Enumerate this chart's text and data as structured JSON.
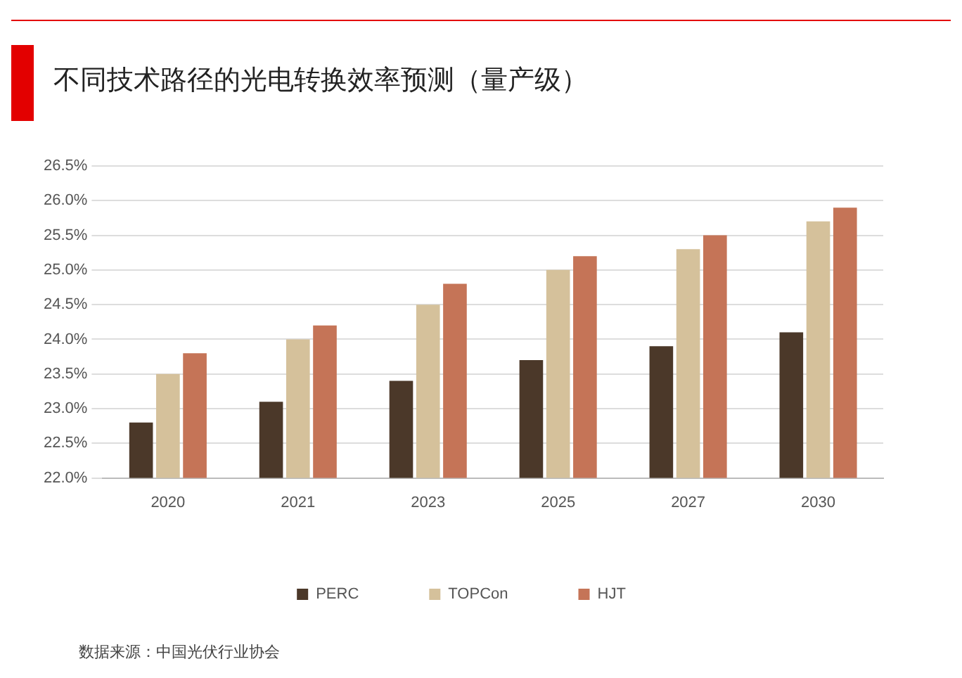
{
  "chart_data": {
    "type": "bar",
    "title": "不同技术路径的光电转换效率预测（量产级）",
    "categories": [
      "2020",
      "2021",
      "2023",
      "2025",
      "2027",
      "2030"
    ],
    "series": [
      {
        "name": "PERC",
        "color": "#4b3829",
        "values": [
          22.8,
          23.1,
          23.4,
          23.7,
          23.9,
          24.1
        ]
      },
      {
        "name": "TOPCon",
        "color": "#d5c19b",
        "values": [
          23.5,
          24.0,
          24.5,
          25.0,
          25.3,
          25.7
        ]
      },
      {
        "name": "HJT",
        "color": "#c57457",
        "values": [
          23.8,
          24.2,
          24.8,
          25.2,
          25.5,
          25.9
        ]
      }
    ],
    "ylim": [
      22,
      26.5
    ],
    "yticks": [
      {
        "value": 22,
        "label": "22.0%"
      },
      {
        "value": 22.5,
        "label": "22.5%"
      },
      {
        "value": 23,
        "label": "23.0%"
      },
      {
        "value": 23.5,
        "label": "23.5%"
      },
      {
        "value": 24,
        "label": "24.0%"
      },
      {
        "value": 24.5,
        "label": "24.5%"
      },
      {
        "value": 25,
        "label": "25.0%"
      },
      {
        "value": 25.5,
        "label": "25.5%"
      },
      {
        "value": 26,
        "label": "26.0%"
      },
      {
        "value": 26.5,
        "label": "26.5%"
      }
    ],
    "grid": "y",
    "legend": "bottom",
    "annotations": [
      "数据来源：中国光伏行业协会"
    ]
  }
}
